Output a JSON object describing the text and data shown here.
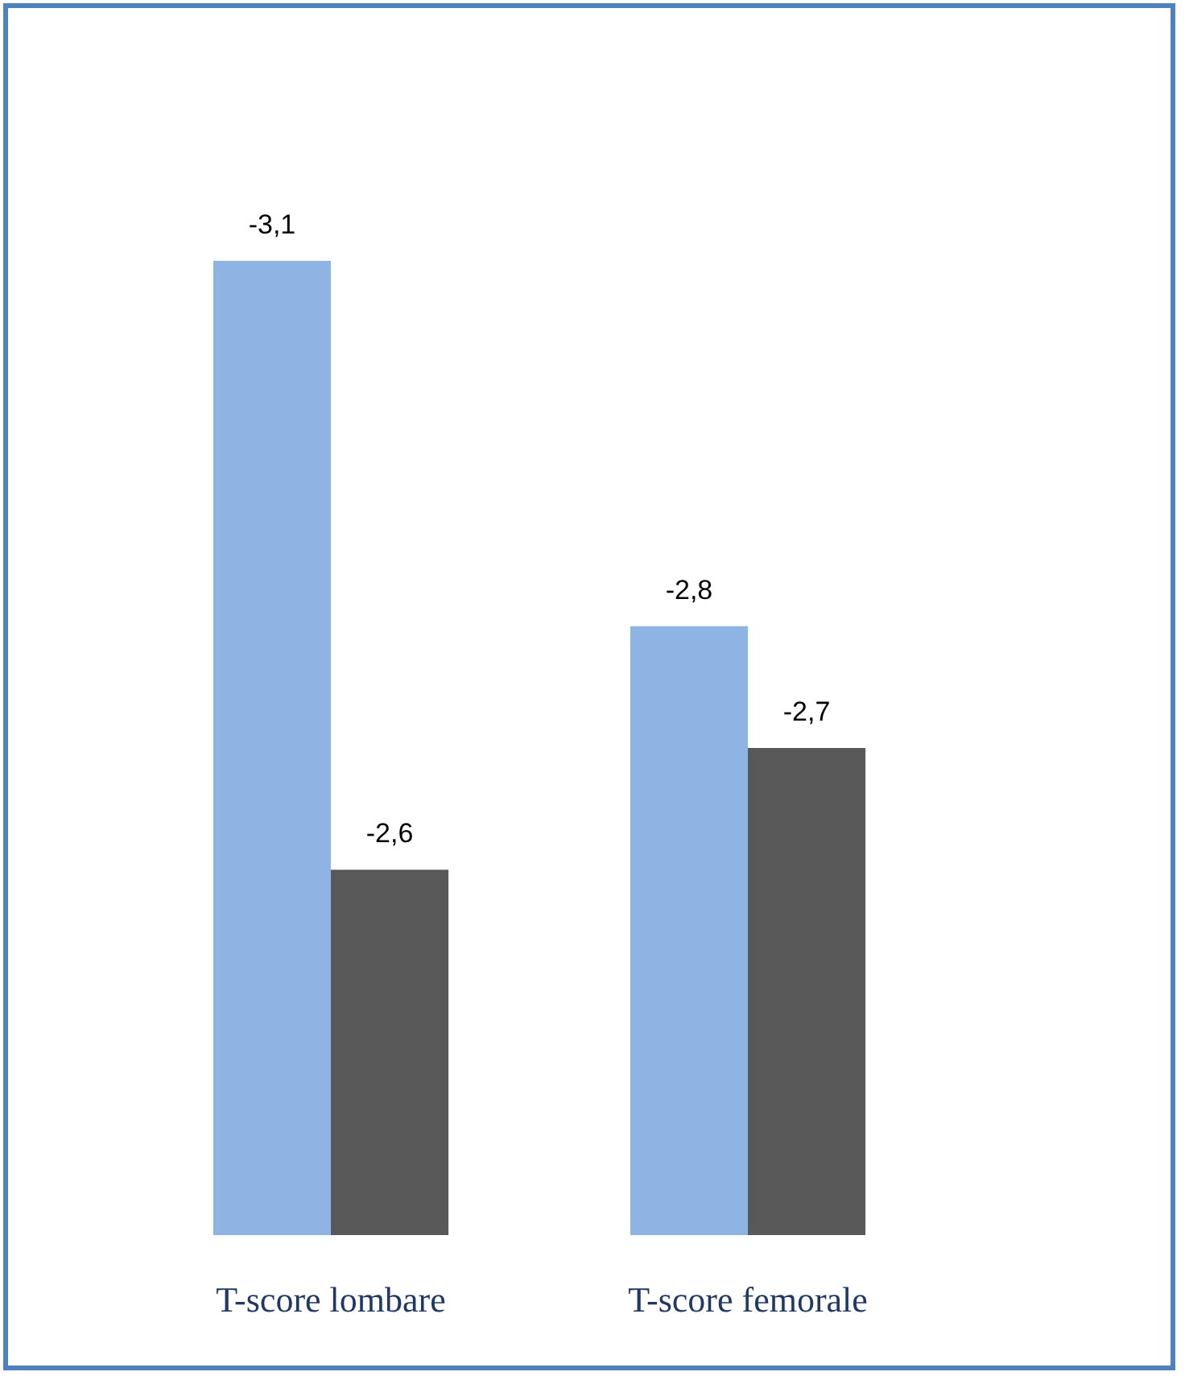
{
  "chart_data": {
    "type": "bar",
    "categories": [
      "T-score lombare",
      "T-score femorale"
    ],
    "series": [
      {
        "color": "#8eb4e3",
        "values": [
          -3.1,
          -2.8
        ],
        "value_labels": [
          "-3,1",
          "-2,8"
        ]
      },
      {
        "color": "#595959",
        "values": [
          -2.6,
          -2.7
        ],
        "value_labels": [
          "-2,6",
          "-2,7"
        ]
      }
    ],
    "ylim": [
      -2.3,
      -3.1
    ],
    "tick_labels": "x"
  }
}
